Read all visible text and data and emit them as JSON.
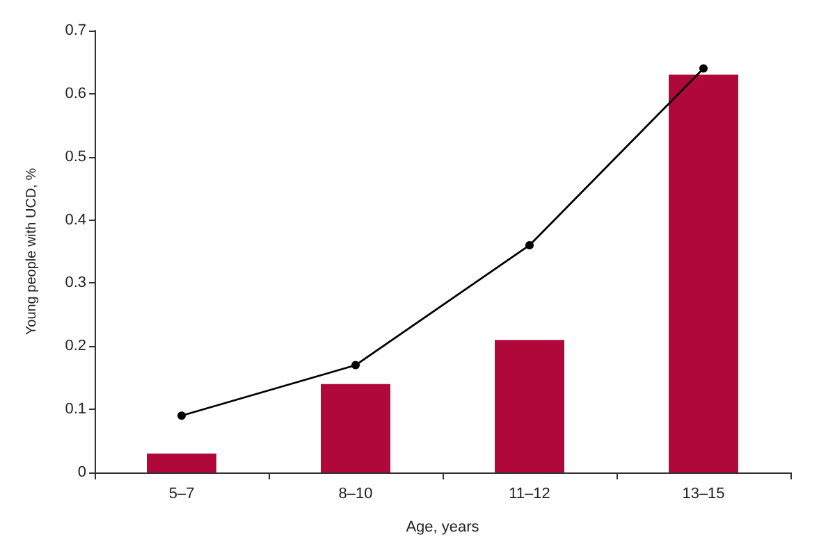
{
  "chart_data": {
    "type": "bar",
    "xlabel": "Age, years",
    "ylabel": "Young people with UCD, %",
    "categories": [
      "5–7",
      "8–10",
      "11–12",
      "13–15"
    ],
    "series": [
      {
        "color": "#b0083a",
        "values": [
          0.03,
          0.14,
          0.21,
          0.63
        ]
      },
      {
        "type": "line",
        "color": "#000000",
        "values": [
          0.09,
          0.17,
          0.36,
          0.64
        ]
      }
    ],
    "ylim": [
      0,
      0.7
    ],
    "yticks": [
      0,
      0.1,
      0.2,
      0.3,
      0.4,
      0.5,
      0.6,
      0.7
    ],
    "marker": "circle",
    "line_style": "solid"
  }
}
